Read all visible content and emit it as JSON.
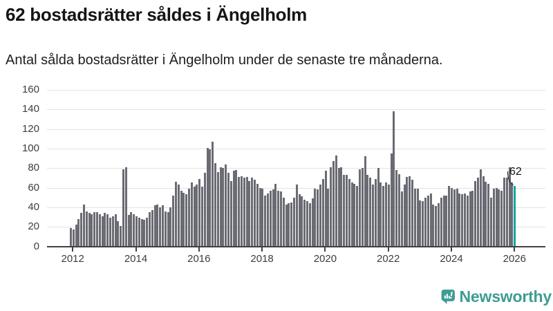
{
  "header": {
    "title": "62 bostadsrätter såldes i Ängelholm",
    "subtitle": "Antal sålda bostadsrätter i Ängelholm under de senaste tre månaderna."
  },
  "chart_data": {
    "type": "bar",
    "title": "62 bostadsrätter såldes i Ängelholm",
    "ylabel": "",
    "xlabel": "",
    "ylim": [
      0,
      160
    ],
    "y_ticks": [
      0,
      20,
      40,
      60,
      80,
      100,
      120,
      140,
      160
    ],
    "x_tick_labels": [
      "2012",
      "2014",
      "2016",
      "2018",
      "2020",
      "2022",
      "2024",
      "2026"
    ],
    "grid": "horizontal",
    "legend": "none",
    "bar_interval": "monthly",
    "monthly_values": [
      19,
      17,
      22,
      28,
      34,
      43,
      36,
      34,
      33,
      35,
      35,
      33,
      31,
      34,
      33,
      29,
      31,
      33,
      26,
      21,
      79,
      81,
      32,
      35,
      33,
      31,
      29,
      28,
      27,
      29,
      35,
      37,
      42,
      43,
      40,
      42,
      36,
      35,
      40,
      52,
      66,
      63,
      57,
      55,
      53,
      59,
      65,
      61,
      63,
      69,
      61,
      75,
      101,
      99,
      107,
      85,
      76,
      81,
      80,
      84,
      75,
      67,
      77,
      78,
      71,
      72,
      70,
      71,
      67,
      70,
      68,
      64,
      60,
      59,
      52,
      54,
      57,
      58,
      64,
      57,
      56,
      50,
      43,
      44,
      45,
      50,
      63,
      53,
      51,
      48,
      46,
      44,
      49,
      59,
      58,
      63,
      69,
      77,
      59,
      81,
      87,
      93,
      80,
      81,
      73,
      73,
      69,
      65,
      64,
      62,
      79,
      80,
      92,
      73,
      70,
      63,
      69,
      80,
      65,
      62,
      65,
      63,
      95,
      138,
      78,
      74,
      56,
      63,
      71,
      72,
      68,
      59,
      59,
      47,
      46,
      50,
      52,
      54,
      43,
      41,
      44,
      50,
      52,
      52,
      62,
      60,
      58,
      59,
      54,
      53,
      54,
      52,
      56,
      57,
      67,
      70,
      79,
      72,
      66,
      64,
      50,
      59,
      60,
      58,
      57,
      70,
      70,
      81,
      65,
      62
    ],
    "highlight_last_value": 62,
    "annotation_label": "62",
    "colors": {
      "bar": "#6a6b73",
      "highlight_bar": "#15a3a3",
      "grid": "#e2e2e2",
      "axis": "#404040",
      "tick_text": "#3d3d3d"
    }
  },
  "footer": {
    "brand": "Newsworthy",
    "brand_color": "#3e9c92",
    "logo_icon": "newsworthy-chart-bubble-icon"
  }
}
